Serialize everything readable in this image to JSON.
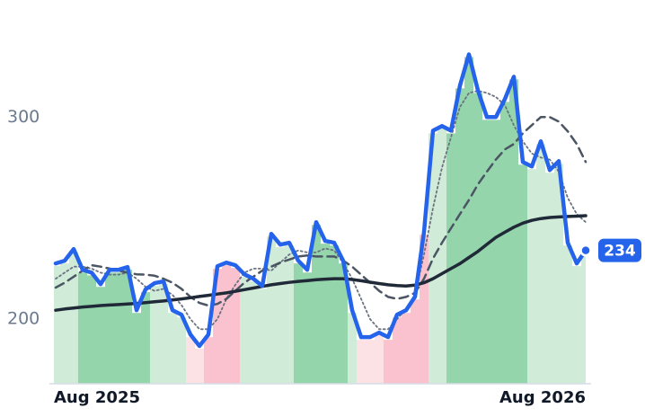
{
  "chart_data": {
    "type": "line",
    "categories": [
      "Aug 2025",
      null,
      null,
      null,
      null,
      null,
      null,
      null,
      null,
      null,
      null,
      null,
      null,
      null,
      null,
      null,
      null,
      null,
      null,
      null,
      null,
      null,
      null,
      null,
      null,
      null,
      null,
      null,
      null,
      null,
      null,
      null,
      null,
      null,
      null,
      null,
      null,
      null,
      null,
      null,
      null,
      null,
      null,
      null,
      null,
      null,
      null,
      null,
      null,
      null,
      null,
      null,
      null,
      null,
      "Aug 2026",
      null,
      null,
      null,
      null,
      null
    ],
    "ylim": [
      168,
      358
    ],
    "yticks": [
      200,
      300
    ],
    "series": [
      {
        "color": "#2563eb",
        "style": "solid",
        "width": 4.5,
        "values": [
          227.6,
          228.9,
          234.7,
          224.4,
          223,
          217.3,
          224.4,
          224.4,
          225.8,
          204.4,
          214.7,
          217.8,
          218.7,
          204.4,
          202.2,
          192.4,
          186.7,
          192.4,
          226.2,
          228,
          226.7,
          222.2,
          220,
          216.4,
          242.2,
          236.9,
          237.8,
          228.9,
          224.4,
          248,
          238.7,
          237.8,
          228.9,
          204.4,
          191.1,
          191.1,
          193.3,
          191.1,
          202.2,
          204.4,
          211.1,
          243.1,
          293.3,
          295.6,
          293.3,
          315.6,
          331.1,
          313.3,
          300,
          300,
          308.9,
          320,
          277.8,
          275.6,
          288,
          273.8,
          278.2,
          237.8,
          227.6,
          234
        ]
      },
      {
        "color": "#1f2937",
        "style": "solid",
        "width": 3.5,
        "values": [
          204.4,
          205,
          205.5,
          206,
          206.3,
          206.7,
          207,
          207.2,
          207.5,
          207.8,
          208.2,
          208.6,
          209,
          209.5,
          210,
          210.6,
          211.2,
          211.8,
          212.4,
          213,
          213.8,
          214.6,
          215.4,
          216.2,
          217,
          217.6,
          218.2,
          218.7,
          219.1,
          219.5,
          219.8,
          220,
          220,
          219.6,
          219,
          218.3,
          217.6,
          217,
          216.6,
          216.4,
          216.8,
          218,
          220,
          222.5,
          225,
          227.5,
          230.5,
          233.5,
          237,
          240.5,
          243,
          245.5,
          247.5,
          248.9,
          249.8,
          250.3,
          250.6,
          250.8,
          251,
          251.2
        ]
      },
      {
        "color": "#4b5563",
        "style": "dashed",
        "width": 2.5,
        "values": [
          215.6,
          218,
          221,
          224,
          226.7,
          226,
          225,
          224,
          223,
          222.2,
          222,
          221.5,
          220,
          218,
          215,
          211,
          208,
          206.7,
          207.5,
          210,
          214,
          218,
          221,
          224,
          226,
          228,
          229.5,
          231,
          231.5,
          231,
          231,
          231,
          229,
          226,
          222,
          218,
          214,
          211,
          210,
          211,
          213,
          220,
          230,
          237.8,
          245,
          252,
          259,
          266.7,
          273,
          279,
          284,
          286.7,
          292,
          296,
          300,
          300,
          297.8,
          293,
          286.7,
          277.8
        ]
      },
      {
        "color": "#6b7280",
        "style": "dotted",
        "width": 1.8,
        "values": [
          220,
          223,
          226,
          226,
          225,
          223,
          222,
          222,
          223,
          220,
          216,
          214,
          215,
          212,
          207,
          200,
          195,
          195,
          200,
          210,
          217,
          223,
          225,
          225,
          224,
          228,
          232,
          234,
          233,
          233,
          235,
          234,
          228,
          220,
          210,
          200,
          195,
          195,
          200,
          205,
          212,
          232,
          255,
          275,
          290,
          305,
          312,
          313,
          312,
          310,
          306,
          296,
          288,
          282,
          280,
          279,
          273,
          260,
          252,
          248
        ]
      }
    ],
    "area_colors": [
      "#cdebd7",
      "#cdebd7",
      "#cdebd7",
      "#8fd3a8",
      "#8fd3a8",
      "#8fd3a8",
      "#8fd3a8",
      "#8fd3a8",
      "#8fd3a8",
      "#8fd3a8",
      "#8fd3a8",
      "#cdebd7",
      "#cdebd7",
      "#cdebd7",
      "#cdebd7",
      "#fde0e4",
      "#fde0e4",
      "#f9bfcb",
      "#f9bfcb",
      "#f9bfcb",
      "#f9bfcb",
      "#cdebd7",
      "#cdebd7",
      "#cdebd7",
      "#cdebd7",
      "#cdebd7",
      "#cdebd7",
      "#8fd3a8",
      "#8fd3a8",
      "#8fd3a8",
      "#8fd3a8",
      "#8fd3a8",
      "#8fd3a8",
      "#cdebd7",
      "#fde0e4",
      "#fde0e4",
      "#fde0e4",
      "#f9bfcb",
      "#f9bfcb",
      "#f9bfcb",
      "#f9bfcb",
      "#f9bfcb",
      "#cdebd7",
      "#cdebd7",
      "#8fd3a8",
      "#8fd3a8",
      "#8fd3a8",
      "#8fd3a8",
      "#8fd3a8",
      "#8fd3a8",
      "#8fd3a8",
      "#8fd3a8",
      "#8fd3a8",
      "#cdebd7",
      "#cdebd7",
      "#cdebd7",
      "#cdebd7",
      "#cdebd7",
      "#cdebd7",
      "#cdebd7"
    ]
  }
}
